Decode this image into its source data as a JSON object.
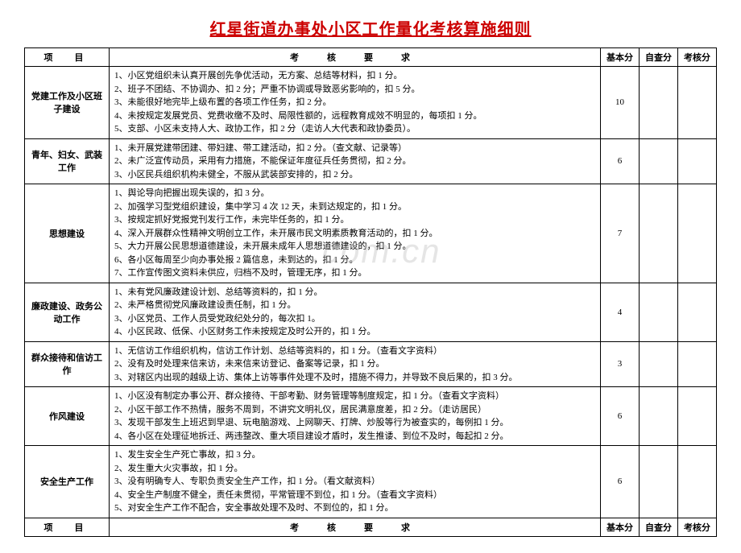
{
  "title": "红星街道办事处小区工作量化考核算施细则",
  "watermark": ".com.cn",
  "headers": {
    "project": "项　目",
    "requirement": "考　核　要　求",
    "base_score": "基本分",
    "self_score": "自查分",
    "assess_score": "考核分"
  },
  "rows": [
    {
      "project": "党建工作及小区班子建设",
      "requirement": "1、小区党组织未认真开展创先争优活动，无方案、总结等材料，扣 1 分。\n2、班子不团结、不协调办、扣 2 分；严重不协调或导致恶劣影响的，扣 5 分。\n3、未能很好地完毕上级布置的各项工作任务，扣 2 分。\n4、未按规定发展党员、党费收缴不及时、局限性额的，远程教育成效不明显的，每项扣 1 分。\n5、支部、小区未支持人大、政协工作，扣 2 分（走访人大代表和政协委员）。",
      "base_score": "10",
      "self_score": "",
      "assess_score": ""
    },
    {
      "project": "青年、妇女、武装工作",
      "requirement": "1、未开展党建带团建、带妇建、带工建活动，扣 2 分。（查文献、记录等）\n2、未广泛宣传动员，采用有力措施，不能保证年度征兵任务贯彻，扣 2 分。\n3、小区民兵组织机构未健全，不服从武装部安排的，扣 2 分。",
      "base_score": "6",
      "self_score": "",
      "assess_score": ""
    },
    {
      "project": "思想建设",
      "requirement": "1、舆论导向把握出现失误的，扣 3 分。\n2、加强学习型党组织建设，集中学习 4 次 12 天，未到达规定的，扣 1 分。\n3、按规定抓好党报党刊发行工作，未完毕任务的，扣 1 分。\n4、深入开展群众性精神文明创立工作，未开展市民文明素质教育活动的，扣 1 分。\n5、大力开展公民思想道德建设，未开展未成年人思想道德建设的，扣 1 分。\n6、各小区每周至少向办事处报 2 篇信息，未到达的，扣 1 分。\n7、工作宣传图文资料未供应，归档不及时，管理无序，扣 1 分。",
      "base_score": "7",
      "self_score": "",
      "assess_score": ""
    },
    {
      "project": "廉政建设、政务公动工作",
      "requirement": "1、未有党风廉政建设计划、总结等资料的，扣 1 分。\n2、未严格贯彻党风廉政建设责任制，扣 1 分。\n3、小区党员、工作人员受党政纪处分的，每次扣 1。\n4、小区民政、低保、小区财务工作未按规定及时公开的，扣 1 分。",
      "base_score": "4",
      "self_score": "",
      "assess_score": ""
    },
    {
      "project": "群众接待和信访工作",
      "requirement": "1、无信访工作组织机构，信访工作计划、总结等资料的，扣 1 分。（查看文字资料）\n2、没有及时处理来信来访，未来信来访登记、备案等记录，扣 1 分。\n3、对辖区内出现的越级上访、集体上访等事件处理不及时，措施不得力，并导致不良后果的，扣 3 分。",
      "base_score": "3",
      "self_score": "",
      "assess_score": ""
    },
    {
      "project": "作风建设",
      "requirement": "1、小区没有制定办事公开、群众接待、干部考勤、财务管理等制度规定，扣 1 分。（查看文字资料）\n2、小区干部工作不热情，服务不周到，不讲究文明礼仪，居民满意度差，扣 2 分。（走访居民）\n3、发现干部发生上班迟到早退、玩电脑游戏、上网聊天、打牌、炒股等行为被查实的，每例扣 1 分。\n4、各小区在处理征地拆迁、两违整改、重大项目建设才盾时，发生推诿、到位不及时，每起扣 2 分。",
      "base_score": "6",
      "self_score": "",
      "assess_score": ""
    },
    {
      "project": "安全生产工作",
      "requirement": "1、发生安全生产死亡事故，扣 3 分。\n2、发生重大火灾事故，扣 1 分。\n3、没有明确专人、专职负责安全生产工作，扣 1 分。（看文献资料）\n4、安全生产制度不健全，责任未贯彻，平常管理不到位，扣 1 分。（查看文字资料）\n5、对安全生产工作不配合，安全事故处理不及时、不到位的，扣 1 分。",
      "base_score": "6",
      "self_score": "",
      "assess_score": ""
    }
  ]
}
